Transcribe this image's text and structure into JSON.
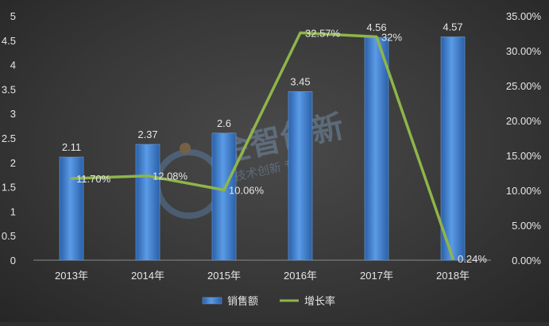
{
  "chart_data": {
    "type": "bar",
    "categories": [
      "2013年",
      "2014年",
      "2015年",
      "2016年",
      "2017年",
      "2018年"
    ],
    "series": [
      {
        "name": "销售额",
        "type": "bar",
        "axis": "left",
        "values": [
          2.11,
          2.37,
          2.6,
          3.45,
          4.56,
          4.57
        ],
        "labels": [
          "2.11",
          "2.37",
          "2.6",
          "3.45",
          "4.56",
          "4.57"
        ],
        "color": "#3f7fd0"
      },
      {
        "name": "增长率",
        "type": "line",
        "axis": "right",
        "values": [
          11.7,
          12.08,
          10.06,
          32.57,
          32,
          0.24
        ],
        "labels": [
          "11.70%",
          "12.08%",
          "10.06%",
          "32.57%",
          "32%",
          "0.24%"
        ],
        "color": "#8fb54a"
      }
    ],
    "y_left": {
      "min": 0,
      "max": 5,
      "ticks": [
        "0",
        "0.5",
        "1",
        "1.5",
        "2",
        "2.5",
        "3",
        "3.5",
        "4",
        "4.5",
        "5"
      ]
    },
    "y_right": {
      "min": 0,
      "max": 35,
      "ticks": [
        "0.00%",
        "5.00%",
        "10.00%",
        "15.00%",
        "20.00%",
        "25.00%",
        "30.00%",
        "35.00%"
      ]
    },
    "grid": false,
    "legend": "bottom-center"
  },
  "watermark": {
    "text": "金智创新",
    "subtext": "技术创新 专一"
  }
}
